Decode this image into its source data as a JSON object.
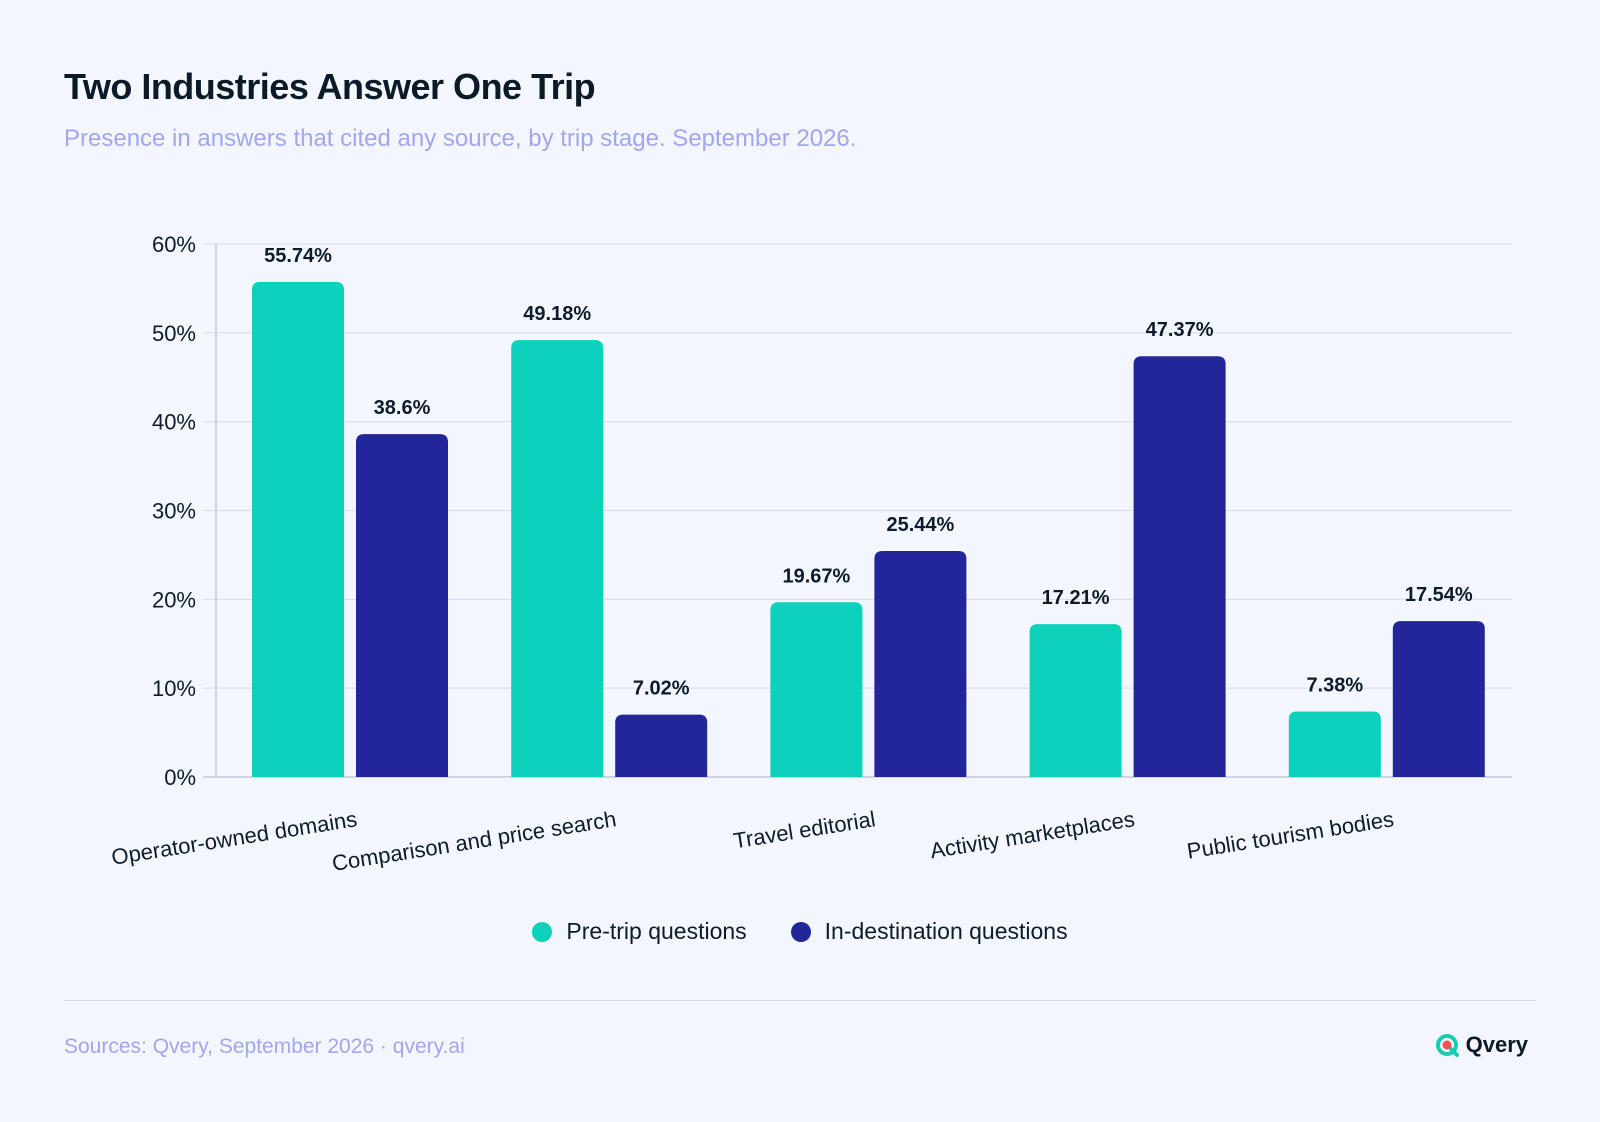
{
  "title": "Two Industries Answer One Trip",
  "subtitle": "Presence in answers that cited any source, by trip stage. September 2026.",
  "footer": {
    "source": "Sources: Qvery, September 2026 · qvery.ai",
    "brand": "Qvery"
  },
  "colors": {
    "pre_trip": "#0dd1bb",
    "in_destination": "#222698",
    "grid": "#d9dcec",
    "axis": "#c3c7d8"
  },
  "legend": [
    {
      "label": "Pre-trip questions",
      "color": "#0dd1bb"
    },
    {
      "label": "In-destination questions",
      "color": "#222698"
    }
  ],
  "chart_data": {
    "type": "bar",
    "categories": [
      "Operator-owned domains",
      "Comparison and price search",
      "Travel editorial",
      "Activity marketplaces",
      "Public tourism bodies"
    ],
    "series": [
      {
        "name": "Pre-trip questions",
        "values": [
          55.74,
          49.18,
          19.67,
          17.21,
          7.38
        ],
        "labels": [
          "55.74%",
          "49.18%",
          "19.67%",
          "17.21%",
          "7.38%"
        ]
      },
      {
        "name": "In-destination questions",
        "values": [
          38.6,
          7.02,
          25.44,
          47.37,
          17.54
        ],
        "labels": [
          "38.6%",
          "7.02%",
          "25.44%",
          "47.37%",
          "17.54%"
        ]
      }
    ],
    "ylim": [
      0,
      60
    ],
    "yticks": [
      0,
      10,
      20,
      30,
      40,
      50,
      60
    ],
    "ytick_labels": [
      "0%",
      "10%",
      "20%",
      "30%",
      "40%",
      "50%",
      "60%"
    ],
    "grid": true,
    "legend_position": "bottom-center"
  }
}
